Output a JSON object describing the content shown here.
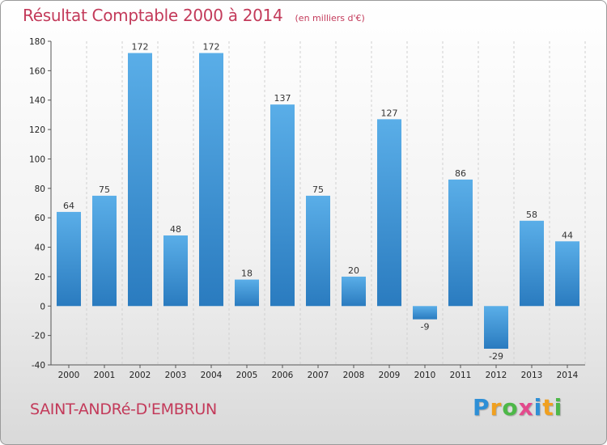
{
  "header": {
    "title": "Résultat Comptable 2000 à 2014",
    "unit": "(en milliers d'€)"
  },
  "footer": {
    "commune": "SAINT-ANDRé-D'EMBRUN",
    "logo_letters": [
      {
        "char": "P",
        "color": "#2e8fd6"
      },
      {
        "char": "r",
        "color": "#f0a020"
      },
      {
        "char": "o",
        "color": "#4db848"
      },
      {
        "char": "x",
        "color": "#e34a8c"
      },
      {
        "char": "i",
        "color": "#2e8fd6"
      },
      {
        "char": "t",
        "color": "#f0a020"
      },
      {
        "char": "i",
        "color": "#4db848"
      }
    ]
  },
  "colors": {
    "bar_light": "#5aaee8",
    "bar_dark": "#2a7bbf",
    "grid": "#d0d0d0",
    "axis": "#555555"
  },
  "chart_data": {
    "type": "bar",
    "title": "Résultat Comptable 2000 à 2014",
    "subtitle": "(en milliers d'€)",
    "xlabel": "",
    "ylabel": "",
    "categories": [
      "2000",
      "2001",
      "2002",
      "2003",
      "2004",
      "2005",
      "2006",
      "2007",
      "2008",
      "2009",
      "2010",
      "2011",
      "2012",
      "2013",
      "2014"
    ],
    "values": [
      64,
      75,
      172,
      48,
      172,
      18,
      137,
      75,
      20,
      127,
      -9,
      86,
      -29,
      58,
      44
    ],
    "ylim": [
      -40,
      180
    ],
    "yticks": [
      -40,
      -20,
      0,
      20,
      40,
      60,
      80,
      100,
      120,
      140,
      160,
      180
    ],
    "grid": "vertical dashed",
    "legend": "none"
  }
}
